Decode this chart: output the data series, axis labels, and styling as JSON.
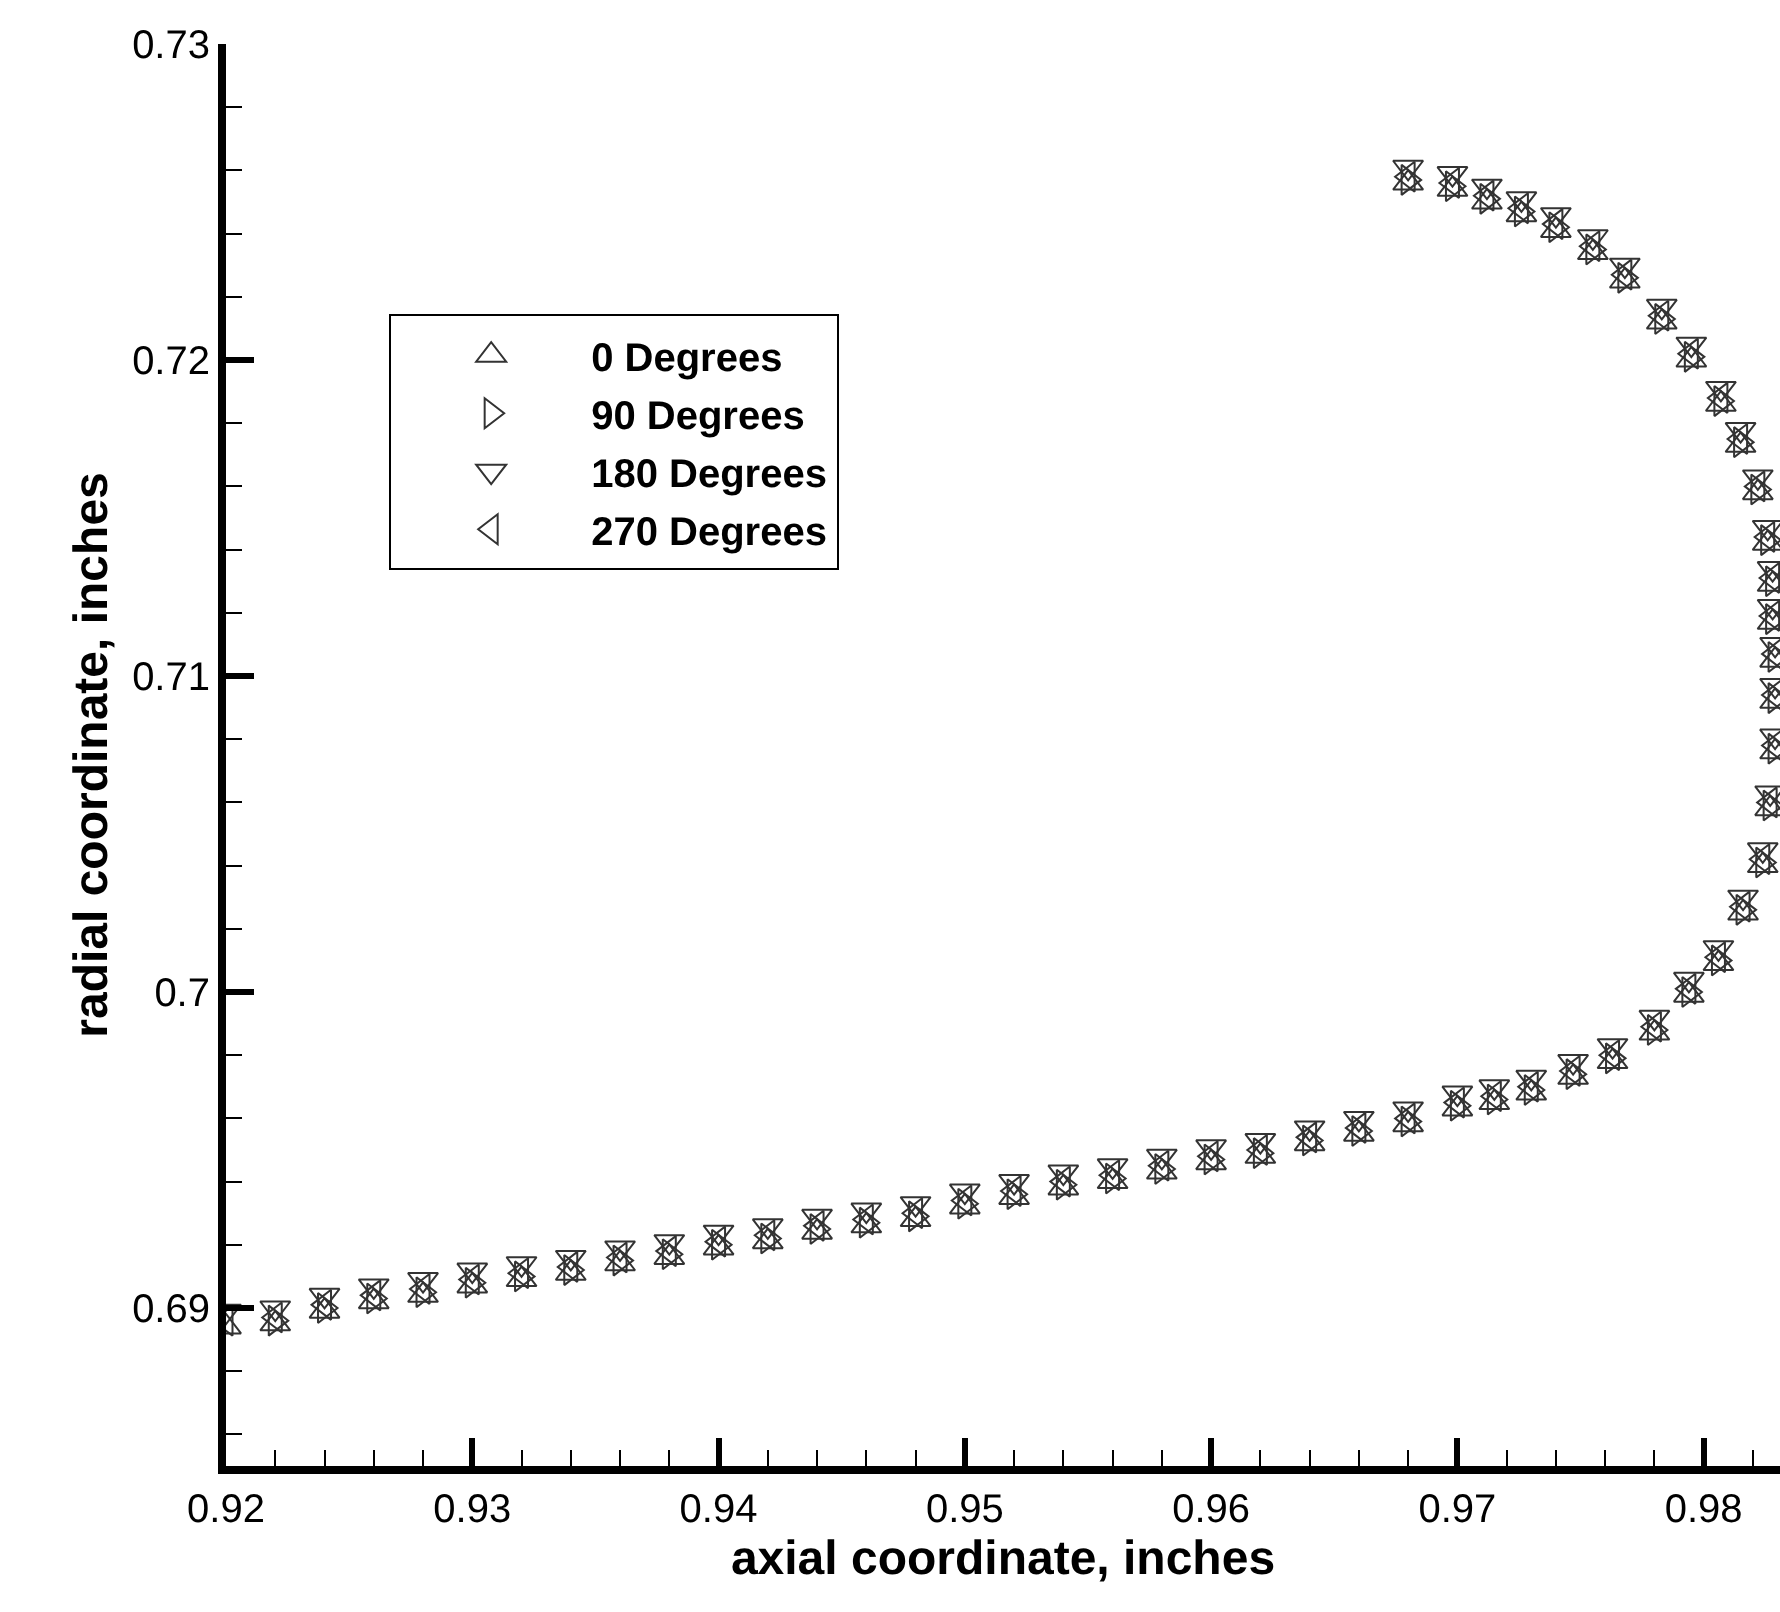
{
  "chart_data": {
    "type": "scatter",
    "xlabel": "axial coordinate, inches",
    "ylabel": "radial coordinate, inches",
    "xlim": [
      0.92,
      0.9831
    ],
    "ylim": [
      0.685,
      0.73
    ],
    "xticks": [
      0.92,
      {
        "value": 0.922,
        "label": null
      },
      {
        "value": 0.924,
        "label": null
      },
      {
        "value": 0.926,
        "label": null
      },
      {
        "value": 0.928,
        "label": null
      },
      0.93,
      {
        "value": 0.932,
        "label": null
      },
      {
        "value": 0.934,
        "label": null
      },
      {
        "value": 0.936,
        "label": null
      },
      {
        "value": 0.938,
        "label": null
      },
      0.94,
      {
        "value": 0.942,
        "label": null
      },
      {
        "value": 0.944,
        "label": null
      },
      {
        "value": 0.946,
        "label": null
      },
      {
        "value": 0.948,
        "label": null
      },
      0.95,
      {
        "value": 0.952,
        "label": null
      },
      {
        "value": 0.954,
        "label": null
      },
      {
        "value": 0.956,
        "label": null
      },
      {
        "value": 0.958,
        "label": null
      },
      0.96,
      {
        "value": 0.962,
        "label": null
      },
      {
        "value": 0.964,
        "label": null
      },
      {
        "value": 0.966,
        "label": null
      },
      {
        "value": 0.968,
        "label": null
      },
      0.97,
      {
        "value": 0.972,
        "label": null
      },
      {
        "value": 0.974,
        "label": null
      },
      {
        "value": 0.976,
        "label": null
      },
      {
        "value": 0.978,
        "label": null
      },
      0.98,
      {
        "value": 0.982,
        "label": null
      }
    ],
    "yticks": [
      {
        "value": 0.686,
        "label": null
      },
      {
        "value": 0.688,
        "label": null
      },
      0.69,
      {
        "value": 0.692,
        "label": null
      },
      {
        "value": 0.694,
        "label": null
      },
      {
        "value": 0.696,
        "label": null
      },
      {
        "value": 0.698,
        "label": null
      },
      0.7,
      {
        "value": 0.702,
        "label": null
      },
      {
        "value": 0.704,
        "label": null
      },
      {
        "value": 0.706,
        "label": null
      },
      {
        "value": 0.708,
        "label": null
      },
      0.71,
      {
        "value": 0.712,
        "label": null
      },
      {
        "value": 0.714,
        "label": null
      },
      {
        "value": 0.716,
        "label": null
      },
      {
        "value": 0.718,
        "label": null
      },
      0.72,
      {
        "value": 0.722,
        "label": null
      },
      {
        "value": 0.724,
        "label": null
      },
      {
        "value": 0.726,
        "label": null
      },
      {
        "value": 0.728,
        "label": null
      },
      0.73
    ],
    "grid": false,
    "legend": "top left",
    "x": [
      0.92,
      0.922,
      0.924,
      0.926,
      0.928,
      0.93,
      0.932,
      0.934,
      0.936,
      0.938,
      0.94,
      0.942,
      0.944,
      0.946,
      0.948,
      0.95,
      0.952,
      0.954,
      0.956,
      0.958,
      0.96,
      0.962,
      0.964,
      0.966,
      0.968,
      0.97,
      0.9715,
      0.973,
      0.9747,
      0.9763,
      0.978,
      0.9794,
      0.9806,
      0.9816,
      0.9824,
      0.9827,
      0.9829,
      0.9829,
      0.9829,
      0.9828,
      0.9828,
      0.9826,
      0.9822,
      0.9815,
      0.9807,
      0.9795,
      0.9783,
      0.9768,
      0.9755,
      0.974,
      0.9726,
      0.9712,
      0.9698,
      0.968
    ],
    "series": [
      {
        "name": "0 Degrees",
        "color": "#333333",
        "marker": "triangle-up",
        "values": [
          0.6894,
          0.6895,
          0.6899,
          0.6902,
          0.6904,
          0.6907,
          0.6909,
          0.6911,
          0.6914,
          0.6916,
          0.6919,
          0.6921,
          0.6924,
          0.6926,
          0.6928,
          0.6932,
          0.6935,
          0.6938,
          0.694,
          0.6943,
          0.6946,
          0.6948,
          0.6952,
          0.6955,
          0.6958,
          0.6963,
          0.6965,
          0.6968,
          0.6973,
          0.6978,
          0.6987,
          0.6999,
          0.7009,
          0.7025,
          0.704,
          0.7058,
          0.7076,
          0.7092,
          0.7105,
          0.7117,
          0.7129,
          0.7142,
          0.7158,
          0.7173,
          0.7186,
          0.72,
          0.7212,
          0.7225,
          0.7234,
          0.7241,
          0.7246,
          0.725,
          0.7254,
          0.7256
        ]
      },
      {
        "name": "90 Degrees",
        "color": "#333333",
        "marker": "triangle-right",
        "values": [
          null,
          0.6896,
          0.69,
          0.6903,
          0.6905,
          0.6908,
          0.691,
          0.6912,
          0.6915,
          0.6917,
          0.692,
          0.6922,
          0.6925,
          0.6927,
          0.6929,
          0.6933,
          0.6936,
          0.6939,
          0.6941,
          0.6944,
          0.6947,
          0.6949,
          0.6953,
          0.6956,
          0.6959,
          0.6964,
          0.6966,
          0.6969,
          0.6974,
          0.6979,
          0.6988,
          0.7,
          0.701,
          0.7026,
          0.7041,
          0.7059,
          0.7077,
          0.7093,
          0.7106,
          0.7118,
          0.713,
          0.7143,
          0.7159,
          0.7174,
          0.7187,
          0.7201,
          0.7213,
          0.7226,
          0.7235,
          0.7242,
          0.7247,
          0.7251,
          0.7255,
          0.7257
        ]
      },
      {
        "name": "180 Degrees",
        "color": "#333333",
        "marker": "triangle-down",
        "values": [
          0.6899,
          0.69,
          0.6904,
          0.6907,
          0.6909,
          0.6912,
          0.6914,
          0.6916,
          0.6919,
          0.6921,
          0.6924,
          0.6926,
          0.6929,
          0.6931,
          0.6933,
          0.6937,
          0.694,
          0.6943,
          0.6945,
          0.6948,
          0.6951,
          0.6953,
          0.6957,
          0.696,
          0.6963,
          0.6968,
          0.697,
          0.6973,
          0.6978,
          0.6983,
          0.6992,
          0.7004,
          0.7014,
          0.703,
          0.7045,
          0.7063,
          0.7081,
          0.7097,
          0.711,
          0.7122,
          0.7134,
          0.7147,
          0.7163,
          0.7178,
          0.7191,
          0.7205,
          0.7217,
          0.723,
          0.7239,
          0.7246,
          0.7251,
          0.7255,
          0.7259,
          0.7261
        ]
      },
      {
        "name": "270 Degrees",
        "color": "#333333",
        "marker": "triangle-left",
        "values": [
          0.6896,
          0.6897,
          0.6901,
          0.6904,
          0.6906,
          0.6909,
          0.6911,
          0.6913,
          0.6916,
          0.6918,
          0.6921,
          0.6923,
          0.6926,
          0.6928,
          0.693,
          0.6934,
          0.6937,
          0.694,
          0.6942,
          0.6945,
          0.6948,
          0.695,
          0.6954,
          0.6957,
          0.696,
          0.6965,
          0.6967,
          0.697,
          0.6975,
          0.698,
          0.6989,
          0.7001,
          0.7011,
          0.7027,
          0.7042,
          0.706,
          0.7078,
          0.7094,
          0.7107,
          0.7119,
          0.7131,
          0.7144,
          0.716,
          0.7175,
          0.7188,
          0.7202,
          0.7214,
          0.7227,
          0.7236,
          0.7243,
          0.7248,
          0.7252,
          0.7256,
          0.7258
        ]
      }
    ]
  }
}
